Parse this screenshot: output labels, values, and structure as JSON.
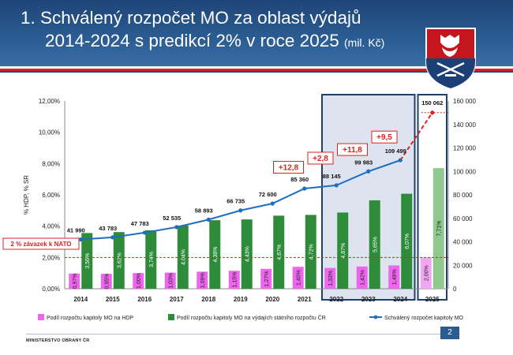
{
  "slide": {
    "title_line1": "1. Schválený rozpočet MO za oblast výdajů",
    "title_line2": "2014-2024 s predikcí 2% v roce 2025",
    "title_unit": "(mil. Kč)",
    "footer_org": "MINISTERSTVO OBRANY ČR",
    "page_number": "2"
  },
  "chart_data": {
    "type": "bar",
    "categories": [
      "2014",
      "2015",
      "2016",
      "2017",
      "2018",
      "2019",
      "2020",
      "2021",
      "2022",
      "2023",
      "2024",
      "2025"
    ],
    "series": [
      {
        "name": "Podíl rozpočtu kapitoly MO na HDP",
        "kind": "bar",
        "axis": "left",
        "color": "#ee66ee",
        "values": [
          0.97,
          0.95,
          1.0,
          1.03,
          1.09,
          1.15,
          1.27,
          1.4,
          1.33,
          1.42,
          1.49,
          2.0
        ],
        "labels": [
          "0,97%",
          "0,95%",
          "1,00%",
          "1,03%",
          "1,09%",
          "1,15%",
          "1,27%",
          "1,40%",
          "1,33%",
          "1,42%",
          "1,49%",
          "2,00%"
        ]
      },
      {
        "name": "Podíl rozpočtu kapitoly MO na výdajích státního rozpočtu ČR",
        "kind": "bar",
        "axis": "left",
        "color": "#2e8b3a",
        "values": [
          3.56,
          3.62,
          3.74,
          4.04,
          4.38,
          4.43,
          4.67,
          4.72,
          4.87,
          5.65,
          6.07,
          7.71
        ],
        "labels": [
          "3,56%",
          "3,62%",
          "3,74%",
          "4,04%",
          "4,38%",
          "4,43%",
          "4,67%",
          "4,72%",
          "4,87%",
          "5,65%",
          "6,07%",
          "7,71%"
        ]
      },
      {
        "name": "Schválený rozpočet kapitoly MO",
        "kind": "line",
        "axis": "right",
        "color": "#1f6fc0",
        "values": [
          41990,
          43783,
          47783,
          52535,
          58893,
          66735,
          72600,
          85360,
          88145,
          99983,
          109499,
          150062
        ],
        "labels": [
          "41 990",
          "43 783",
          "47 783",
          "52 535",
          "58 893",
          "66 735",
          "72 600",
          "85 360",
          "88 145",
          "99 983",
          "109 499",
          "150 062"
        ]
      }
    ],
    "ylabel": "% HDP, % SR",
    "y_left": {
      "min": 0,
      "max": 12,
      "ticks": [
        "0,00%",
        "2,00%",
        "4,00%",
        "6,00%",
        "8,00%",
        "10,00%",
        "12,00%"
      ]
    },
    "y_right": {
      "min": 0,
      "max": 160000,
      "ticks": [
        "0",
        "20 000",
        "40 000",
        "60 000",
        "80 000",
        "100 000",
        "120 000",
        "140 000",
        "160 000"
      ]
    },
    "nato_line": {
      "value": 2,
      "label": "2 % závazek k NATO",
      "color": "#e02020"
    },
    "annotations": [
      {
        "text": "+12,8",
        "between": [
          "2020",
          "2021"
        ]
      },
      {
        "text": "+2,8",
        "between": [
          "2021",
          "2022"
        ]
      },
      {
        "text": "+11,8",
        "between": [
          "2022",
          "2023"
        ]
      },
      {
        "text": "+9,5",
        "between": [
          "2023",
          "2024"
        ]
      }
    ],
    "highlight_ranges": [
      [
        "2022",
        "2024"
      ],
      [
        "2025",
        "2025"
      ]
    ],
    "grid": false,
    "legend_position": "bottom"
  }
}
